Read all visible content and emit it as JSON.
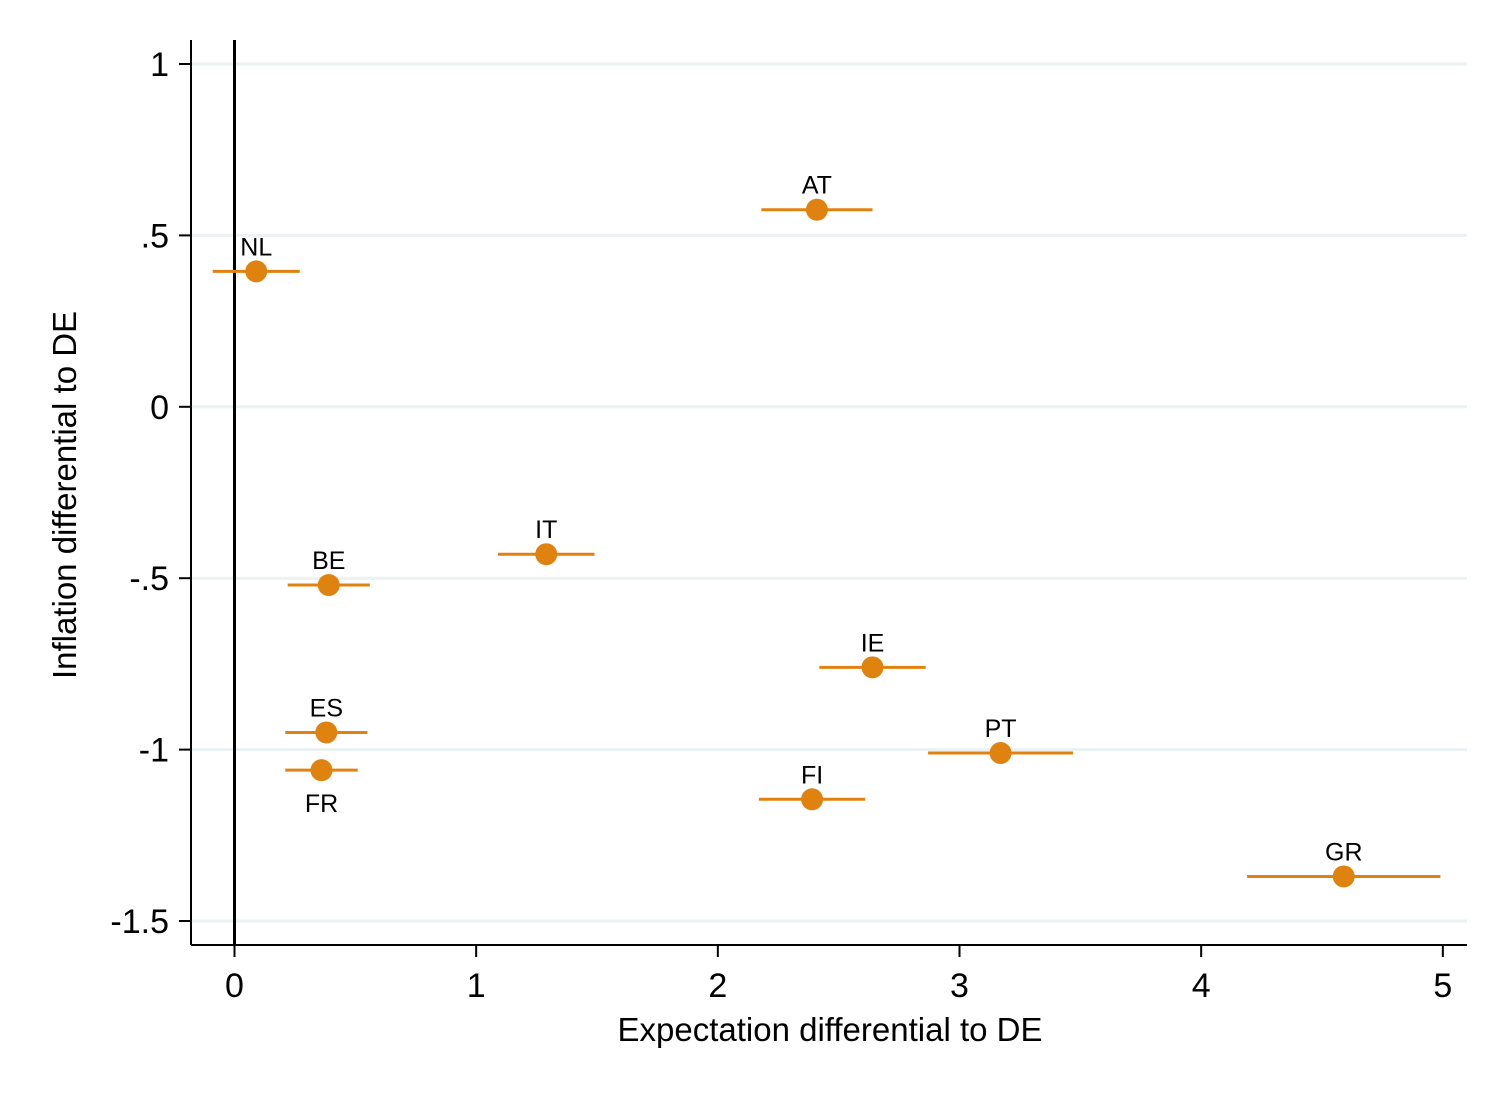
{
  "chart_data": {
    "type": "scatter",
    "xlabel": "Expectation differential to DE",
    "ylabel": "Inflation differential to DE",
    "xlim": [
      -0.18,
      5.1
    ],
    "ylim": [
      -1.57,
      1.07
    ],
    "x_ticks": [
      0,
      1,
      2,
      3,
      4,
      5
    ],
    "x_tick_labels": [
      "0",
      "1",
      "2",
      "3",
      "4",
      "5"
    ],
    "y_ticks": [
      1,
      0.5,
      0,
      -0.5,
      -1,
      -1.5
    ],
    "y_tick_labels": [
      "1",
      ".5",
      "0",
      "-.5",
      "-1",
      "-1.5"
    ],
    "grid": "horizontal",
    "reference_line_x": 0,
    "marker_color": "#e08210",
    "grid_color": "#eaf2f3",
    "points": [
      {
        "label": "NL",
        "x": 0.09,
        "y": 0.395,
        "x_low": -0.09,
        "x_high": 0.27,
        "label_pos": "above"
      },
      {
        "label": "AT",
        "x": 2.41,
        "y": 0.575,
        "x_low": 2.18,
        "x_high": 2.64,
        "label_pos": "above"
      },
      {
        "label": "IT",
        "x": 1.29,
        "y": -0.43,
        "x_low": 1.09,
        "x_high": 1.49,
        "label_pos": "above"
      },
      {
        "label": "BE",
        "x": 0.39,
        "y": -0.52,
        "x_low": 0.22,
        "x_high": 0.56,
        "label_pos": "above"
      },
      {
        "label": "IE",
        "x": 2.64,
        "y": -0.76,
        "x_low": 2.42,
        "x_high": 2.86,
        "label_pos": "above"
      },
      {
        "label": "ES",
        "x": 0.38,
        "y": -0.95,
        "x_low": 0.21,
        "x_high": 0.55,
        "label_pos": "above"
      },
      {
        "label": "FR",
        "x": 0.36,
        "y": -1.06,
        "x_low": 0.21,
        "x_high": 0.51,
        "label_pos": "below"
      },
      {
        "label": "PT",
        "x": 3.17,
        "y": -1.01,
        "x_low": 2.87,
        "x_high": 3.47,
        "label_pos": "above"
      },
      {
        "label": "FI",
        "x": 2.39,
        "y": -1.145,
        "x_low": 2.17,
        "x_high": 2.61,
        "label_pos": "above"
      },
      {
        "label": "GR",
        "x": 4.59,
        "y": -1.37,
        "x_low": 4.19,
        "x_high": 4.99,
        "label_pos": "above"
      }
    ]
  }
}
